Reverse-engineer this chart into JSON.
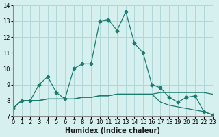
{
  "xlabel": "Humidex (Indice chaleur)",
  "bg_color": "#d6f0f0",
  "grid_color": "#b0d8d8",
  "line_color": "#1a7a6e",
  "xlim": [
    0,
    23
  ],
  "ylim": [
    7,
    14
  ],
  "xticks": [
    0,
    1,
    2,
    3,
    4,
    5,
    6,
    7,
    8,
    9,
    10,
    11,
    12,
    13,
    14,
    15,
    16,
    17,
    18,
    19,
    20,
    21,
    22,
    23
  ],
  "yticks": [
    7,
    8,
    9,
    10,
    11,
    12,
    13,
    14
  ],
  "series": [
    [
      7.5,
      8.0,
      8.0,
      8.0,
      8.1,
      8.1,
      8.1,
      8.1,
      8.2,
      8.2,
      8.3,
      8.3,
      8.4,
      8.4,
      8.4,
      8.4,
      8.4,
      8.5,
      8.5,
      8.5,
      8.5,
      8.5,
      8.5,
      8.4
    ],
    [
      7.5,
      8.0,
      8.0,
      8.0,
      8.1,
      8.1,
      8.1,
      8.1,
      8.2,
      8.2,
      8.3,
      8.3,
      8.4,
      8.4,
      8.4,
      8.4,
      8.4,
      7.9,
      7.7,
      7.6,
      7.5,
      7.4,
      7.3,
      7.1
    ],
    [
      7.5,
      8.0,
      8.0,
      9.0,
      9.5,
      8.5,
      8.1,
      10.0,
      10.3,
      10.3,
      13.0,
      13.1,
      12.4,
      13.6,
      11.6,
      11.0,
      9.0,
      8.8,
      8.2,
      7.9,
      8.2,
      8.3,
      7.3,
      7.1
    ]
  ],
  "series_markers": [
    false,
    false,
    true
  ]
}
